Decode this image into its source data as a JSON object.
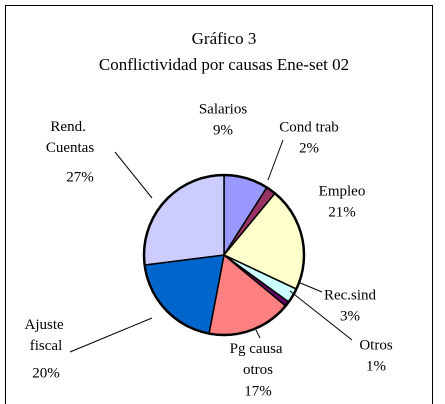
{
  "chart_data": {
    "type": "pie",
    "title": "Gráfico 3",
    "subtitle": "Conflictividad por causas Ene-set 02",
    "categories": [
      "Salarios",
      "Cond trab",
      "Empleo",
      "Rec.sind",
      "Otros",
      "Pg causa otros",
      "Ajuste fiscal",
      "Rend. Cuentas"
    ],
    "values": [
      9,
      2,
      21,
      3,
      1,
      17,
      20,
      27
    ],
    "value_labels": [
      "9%",
      "2%",
      "21%",
      "3%",
      "1%",
      "17%",
      "20%",
      "27%"
    ],
    "colors": [
      "#9999ff",
      "#993366",
      "#ffffcc",
      "#ccffff",
      "#660066",
      "#ff8080",
      "#0066cc",
      "#ccccff"
    ]
  }
}
